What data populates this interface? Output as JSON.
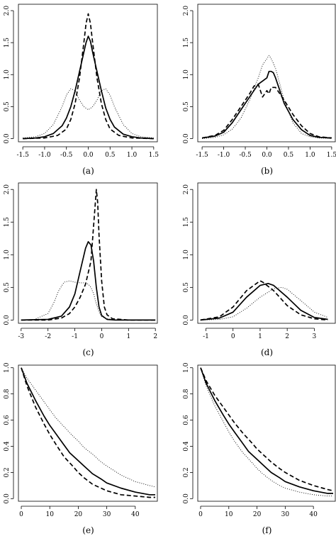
{
  "chart_data": [
    {
      "type": "line",
      "caption": "(a)",
      "xlim": [
        -1.6,
        1.6
      ],
      "ylim": [
        -0.05,
        2.1
      ],
      "xticks": [
        -1.5,
        -1.0,
        -0.5,
        0.0,
        0.5,
        1.0,
        1.5
      ],
      "xtick_labels": [
        "-1.5",
        "-1.0",
        "-0.5",
        "0.0",
        "0.5",
        "1.0",
        "1.5"
      ],
      "yticks": [
        0.0,
        0.5,
        1.0,
        1.5,
        2.0
      ],
      "ytick_labels": [
        "0.0",
        "0.5",
        "1.0",
        "1.5",
        "2.0"
      ],
      "series": [
        {
          "style": "solid",
          "x": [
            -1.5,
            -1.2,
            -1.0,
            -0.8,
            -0.6,
            -0.5,
            -0.4,
            -0.3,
            -0.2,
            -0.1,
            -0.05,
            0.0,
            0.05,
            0.1,
            0.2,
            0.3,
            0.4,
            0.5,
            0.6,
            0.8,
            1.0,
            1.2,
            1.5
          ],
          "y": [
            0.0,
            0.01,
            0.03,
            0.08,
            0.2,
            0.32,
            0.5,
            0.75,
            1.05,
            1.35,
            1.5,
            1.6,
            1.52,
            1.35,
            1.05,
            0.75,
            0.48,
            0.3,
            0.18,
            0.07,
            0.03,
            0.01,
            0.0
          ]
        },
        {
          "style": "dashed",
          "x": [
            -1.5,
            -1.0,
            -0.7,
            -0.5,
            -0.4,
            -0.3,
            -0.2,
            -0.1,
            -0.05,
            0.0,
            0.05,
            0.1,
            0.2,
            0.3,
            0.4,
            0.5,
            0.7,
            1.0,
            1.5
          ],
          "y": [
            0.0,
            0.01,
            0.05,
            0.15,
            0.3,
            0.55,
            0.95,
            1.5,
            1.8,
            1.95,
            1.8,
            1.5,
            0.95,
            0.55,
            0.3,
            0.15,
            0.05,
            0.01,
            0.0
          ]
        },
        {
          "style": "dotted",
          "x": [
            -1.5,
            -1.2,
            -1.0,
            -0.8,
            -0.6,
            -0.5,
            -0.4,
            -0.3,
            -0.2,
            -0.1,
            0.0,
            0.1,
            0.2,
            0.3,
            0.4,
            0.5,
            0.6,
            0.8,
            1.0,
            1.2,
            1.5
          ],
          "y": [
            0.01,
            0.03,
            0.08,
            0.22,
            0.5,
            0.68,
            0.78,
            0.75,
            0.6,
            0.5,
            0.45,
            0.5,
            0.6,
            0.75,
            0.78,
            0.68,
            0.5,
            0.22,
            0.08,
            0.03,
            0.01
          ]
        }
      ]
    },
    {
      "type": "line",
      "caption": "(b)",
      "xlim": [
        -1.6,
        1.6
      ],
      "ylim": [
        -0.05,
        2.1
      ],
      "xticks": [
        -1.5,
        -1.0,
        -0.5,
        0.0,
        0.5,
        1.0,
        1.5
      ],
      "xtick_labels": [
        "-1.5",
        "-1.0",
        "-0.5",
        "0.0",
        "0.5",
        "1.0",
        "1.5"
      ],
      "yticks": [
        0.0,
        0.5,
        1.0,
        1.5,
        2.0
      ],
      "ytick_labels": [
        "0.0",
        "0.5",
        "1.0",
        "1.5",
        "2.0"
      ],
      "series": [
        {
          "style": "solid",
          "x": [
            -1.5,
            -1.2,
            -1.0,
            -0.8,
            -0.6,
            -0.4,
            -0.3,
            -0.2,
            -0.1,
            0.0,
            0.05,
            0.1,
            0.15,
            0.2,
            0.3,
            0.4,
            0.6,
            0.8,
            1.0,
            1.2,
            1.5
          ],
          "y": [
            0.01,
            0.04,
            0.1,
            0.25,
            0.45,
            0.65,
            0.75,
            0.85,
            0.9,
            0.95,
            1.05,
            1.05,
            1.03,
            0.95,
            0.75,
            0.55,
            0.3,
            0.14,
            0.05,
            0.02,
            0.01
          ]
        },
        {
          "style": "dashed",
          "x": [
            -1.5,
            -1.2,
            -1.0,
            -0.8,
            -0.6,
            -0.4,
            -0.3,
            -0.2,
            -0.1,
            0.0,
            0.05,
            0.1,
            0.2,
            0.3,
            0.4,
            0.6,
            0.8,
            1.0,
            1.2,
            1.5
          ],
          "y": [
            0.01,
            0.05,
            0.13,
            0.3,
            0.5,
            0.7,
            0.82,
            0.85,
            0.65,
            0.75,
            0.7,
            0.8,
            0.8,
            0.7,
            0.6,
            0.38,
            0.2,
            0.08,
            0.03,
            0.01
          ]
        },
        {
          "style": "dotted",
          "x": [
            -1.5,
            -1.2,
            -1.0,
            -0.8,
            -0.6,
            -0.4,
            -0.2,
            -0.1,
            0.0,
            0.05,
            0.1,
            0.2,
            0.3,
            0.4,
            0.6,
            0.8,
            1.0,
            1.2,
            1.5
          ],
          "y": [
            0.0,
            0.02,
            0.06,
            0.15,
            0.32,
            0.6,
            0.95,
            1.15,
            1.25,
            1.3,
            1.25,
            1.1,
            0.85,
            0.6,
            0.25,
            0.08,
            0.03,
            0.01,
            0.0
          ]
        }
      ]
    },
    {
      "type": "line",
      "caption": "(c)",
      "xlim": [
        -3.1,
        2.1
      ],
      "ylim": [
        -0.05,
        2.1
      ],
      "xticks": [
        -3,
        -2,
        -1,
        0,
        1,
        2
      ],
      "xtick_labels": [
        "-3",
        "-2",
        "-1",
        "0",
        "1",
        "2"
      ],
      "yticks": [
        0.0,
        0.5,
        1.0,
        1.5,
        2.0
      ],
      "ytick_labels": [
        "0.0",
        "0.5",
        "1.0",
        "1.5",
        "2.0"
      ],
      "series": [
        {
          "style": "solid",
          "x": [
            -3.0,
            -2.0,
            -1.5,
            -1.2,
            -1.0,
            -0.8,
            -0.6,
            -0.5,
            -0.4,
            -0.3,
            -0.2,
            -0.1,
            0.0,
            0.2,
            0.5,
            1.0,
            2.0
          ],
          "y": [
            0.0,
            0.01,
            0.06,
            0.2,
            0.4,
            0.75,
            1.1,
            1.2,
            1.15,
            0.9,
            0.5,
            0.2,
            0.07,
            0.01,
            0.0,
            0.0,
            0.0
          ]
        },
        {
          "style": "dashed",
          "x": [
            -3.0,
            -2.0,
            -1.5,
            -1.2,
            -1.0,
            -0.8,
            -0.6,
            -0.4,
            -0.3,
            -0.2,
            -0.15,
            -0.1,
            0.0,
            0.1,
            0.2,
            0.4,
            1.0,
            2.0
          ],
          "y": [
            0.0,
            0.0,
            0.03,
            0.1,
            0.2,
            0.35,
            0.55,
            0.9,
            1.45,
            2.0,
            1.8,
            1.3,
            0.6,
            0.2,
            0.08,
            0.02,
            0.0,
            0.0
          ]
        },
        {
          "style": "dotted",
          "x": [
            -3.0,
            -2.5,
            -2.0,
            -1.8,
            -1.6,
            -1.4,
            -1.2,
            -1.0,
            -0.8,
            -0.6,
            -0.5,
            -0.4,
            -0.3,
            -0.2,
            -0.1,
            0.0,
            0.2,
            0.5,
            1.0,
            2.0
          ],
          "y": [
            0.0,
            0.01,
            0.1,
            0.25,
            0.45,
            0.58,
            0.6,
            0.58,
            0.57,
            0.57,
            0.55,
            0.5,
            0.4,
            0.25,
            0.12,
            0.05,
            0.02,
            0.0,
            0.0,
            0.0
          ]
        }
      ]
    },
    {
      "type": "line",
      "caption": "(d)",
      "xlim": [
        -1.3,
        3.8
      ],
      "ylim": [
        -0.05,
        2.1
      ],
      "xticks": [
        -1,
        0,
        1,
        2,
        3
      ],
      "xtick_labels": [
        "-1",
        "0",
        "1",
        "2",
        "3"
      ],
      "yticks": [
        0.0,
        0.5,
        1.0,
        1.5,
        2.0
      ],
      "ytick_labels": [
        "0.0",
        "0.5",
        "1.0",
        "1.5",
        "2.0"
      ],
      "series": [
        {
          "style": "solid",
          "x": [
            -1.2,
            -0.5,
            0.0,
            0.5,
            1.0,
            1.3,
            1.5,
            2.0,
            2.5,
            3.0,
            3.5
          ],
          "y": [
            0.0,
            0.03,
            0.12,
            0.35,
            0.53,
            0.56,
            0.53,
            0.35,
            0.15,
            0.04,
            0.01
          ]
        },
        {
          "style": "dashed",
          "x": [
            -1.2,
            -0.5,
            0.0,
            0.5,
            1.0,
            1.1,
            1.5,
            2.0,
            2.5,
            3.0,
            3.5
          ],
          "y": [
            0.0,
            0.05,
            0.2,
            0.45,
            0.6,
            0.58,
            0.45,
            0.22,
            0.08,
            0.02,
            0.0
          ]
        },
        {
          "style": "dotted",
          "x": [
            -1.2,
            -0.5,
            0.0,
            0.5,
            1.0,
            1.5,
            1.8,
            2.0,
            2.5,
            3.0,
            3.5
          ],
          "y": [
            0.0,
            0.01,
            0.05,
            0.18,
            0.35,
            0.48,
            0.5,
            0.47,
            0.3,
            0.12,
            0.04
          ]
        }
      ]
    },
    {
      "type": "line",
      "caption": "(e)",
      "xlim": [
        -1,
        48
      ],
      "ylim": [
        -0.02,
        1.02
      ],
      "xticks": [
        0,
        10,
        20,
        30,
        40
      ],
      "xtick_labels": [
        "0",
        "10",
        "20",
        "30",
        "40"
      ],
      "yticks": [
        0.0,
        0.2,
        0.4,
        0.6,
        0.8,
        1.0
      ],
      "ytick_labels": [
        "0.0",
        "0.2",
        "0.4",
        "0.6",
        "0.8",
        "1.0"
      ],
      "series": [
        {
          "style": "solid",
          "x": [
            0,
            2,
            5,
            8,
            10,
            12,
            15,
            17,
            18,
            20,
            22,
            25,
            28,
            30,
            35,
            40,
            45,
            47
          ],
          "y": [
            1.0,
            0.88,
            0.75,
            0.63,
            0.56,
            0.5,
            0.41,
            0.35,
            0.33,
            0.29,
            0.25,
            0.19,
            0.15,
            0.12,
            0.08,
            0.05,
            0.03,
            0.03
          ]
        },
        {
          "style": "dashed",
          "x": [
            0,
            2,
            5,
            8,
            10,
            12,
            15,
            18,
            20,
            22,
            25,
            28,
            30,
            35,
            40,
            45,
            47
          ],
          "y": [
            1.0,
            0.86,
            0.7,
            0.57,
            0.49,
            0.42,
            0.32,
            0.25,
            0.2,
            0.16,
            0.11,
            0.08,
            0.06,
            0.03,
            0.02,
            0.01,
            0.01
          ]
        },
        {
          "style": "dotted",
          "x": [
            0,
            2,
            5,
            8,
            10,
            12,
            15,
            18,
            20,
            22,
            25,
            28,
            30,
            35,
            40,
            45,
            47
          ],
          "y": [
            1.0,
            0.92,
            0.83,
            0.74,
            0.68,
            0.62,
            0.55,
            0.48,
            0.44,
            0.39,
            0.34,
            0.28,
            0.25,
            0.18,
            0.13,
            0.1,
            0.09
          ]
        }
      ]
    },
    {
      "type": "line",
      "caption": "(f)",
      "xlim": [
        -1,
        48
      ],
      "ylim": [
        -0.02,
        1.02
      ],
      "xticks": [
        0,
        10,
        20,
        30,
        40
      ],
      "xtick_labels": [
        "0",
        "10",
        "20",
        "30",
        "40"
      ],
      "yticks": [
        0.0,
        0.2,
        0.4,
        0.6,
        0.8,
        1.0
      ],
      "ytick_labels": [
        "0.0",
        "0.2",
        "0.4",
        "0.6",
        "0.8",
        "1.0"
      ],
      "series": [
        {
          "style": "solid",
          "x": [
            0,
            2,
            5,
            8,
            10,
            12,
            15,
            17,
            18,
            20,
            22,
            25,
            28,
            30,
            35,
            40,
            45,
            47
          ],
          "y": [
            1.0,
            0.88,
            0.75,
            0.64,
            0.57,
            0.51,
            0.42,
            0.36,
            0.34,
            0.3,
            0.26,
            0.2,
            0.16,
            0.13,
            0.09,
            0.06,
            0.04,
            0.04
          ]
        },
        {
          "style": "dashed",
          "x": [
            0,
            2,
            5,
            8,
            10,
            12,
            15,
            18,
            20,
            22,
            25,
            28,
            30,
            35,
            40,
            45,
            47
          ],
          "y": [
            1.0,
            0.9,
            0.79,
            0.7,
            0.64,
            0.58,
            0.5,
            0.43,
            0.38,
            0.34,
            0.28,
            0.23,
            0.2,
            0.14,
            0.1,
            0.07,
            0.06
          ]
        },
        {
          "style": "dotted",
          "x": [
            0,
            2,
            5,
            8,
            10,
            12,
            15,
            18,
            20,
            22,
            25,
            28,
            30,
            35,
            40,
            45,
            47
          ],
          "y": [
            1.0,
            0.86,
            0.71,
            0.59,
            0.51,
            0.44,
            0.35,
            0.28,
            0.23,
            0.19,
            0.14,
            0.1,
            0.08,
            0.05,
            0.03,
            0.02,
            0.02
          ]
        }
      ]
    }
  ]
}
